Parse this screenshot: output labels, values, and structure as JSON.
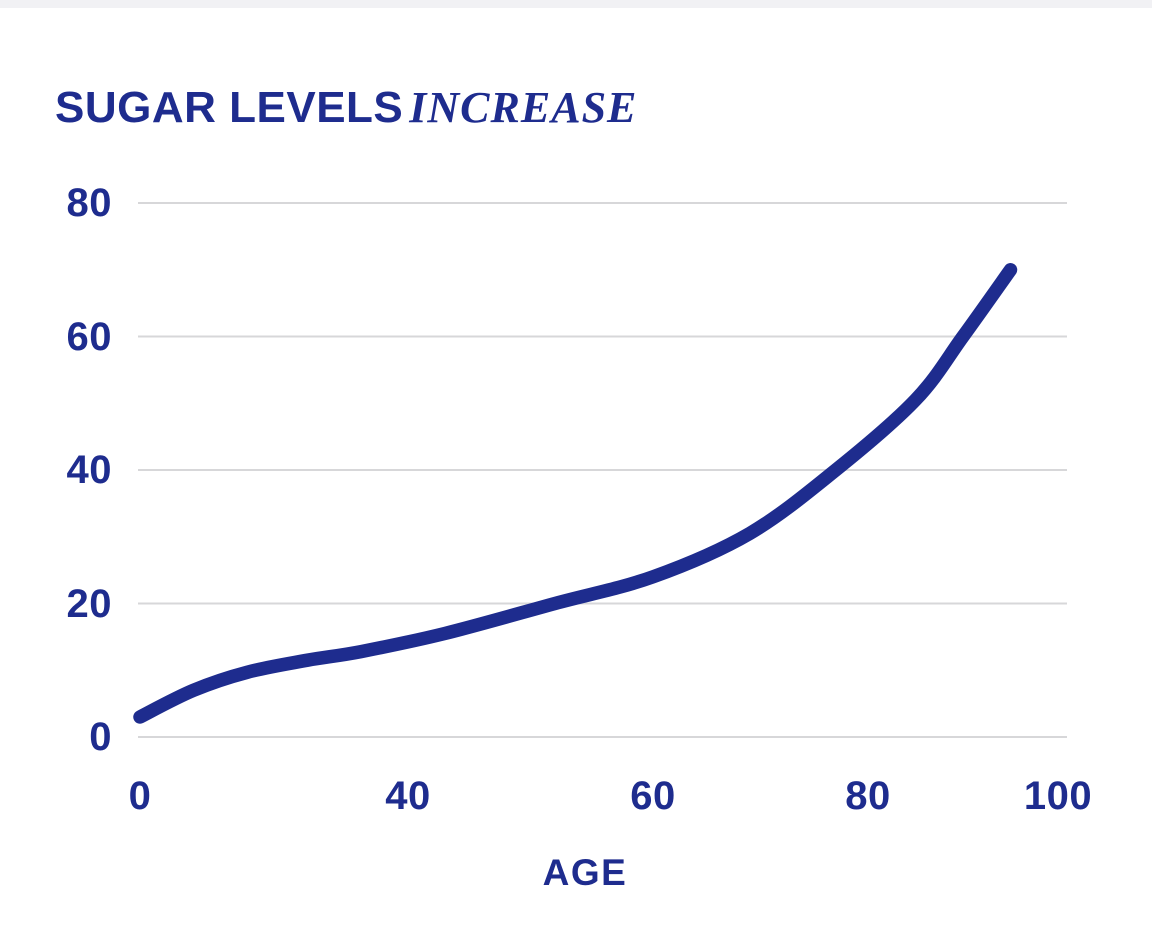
{
  "colors": {
    "ink": "#1e2c8e",
    "grid": "#d7d7d9",
    "background": "#ffffff",
    "top_strip": "#f1f1f4"
  },
  "chart_data": {
    "type": "line",
    "title": "SUGAR LEVELS INCREASE",
    "title_main": "SUGAR LEVELS",
    "title_accent": "INCREASE",
    "xlabel": "AGE",
    "ylabel": "",
    "xlim": [
      0,
      100
    ],
    "ylim": [
      0,
      80
    ],
    "x_ticks": [
      0,
      40,
      60,
      80,
      100
    ],
    "y_ticks": [
      0,
      20,
      40,
      60,
      80
    ],
    "grid": "horizontal-only",
    "legend": "none",
    "series": [
      {
        "name": "sugar-level",
        "color": "#1e2c8e",
        "stroke_width": 13.5,
        "points": [
          [
            0,
            3
          ],
          [
            8,
            7
          ],
          [
            16,
            9.7
          ],
          [
            25,
            11.5
          ],
          [
            33,
            12.8
          ],
          [
            43,
            15.5
          ],
          [
            52,
            20
          ],
          [
            60,
            24
          ],
          [
            69,
            30.5
          ],
          [
            77,
            40
          ],
          [
            85,
            50.5
          ],
          [
            90,
            60
          ],
          [
            95,
            70
          ]
        ]
      }
    ]
  }
}
